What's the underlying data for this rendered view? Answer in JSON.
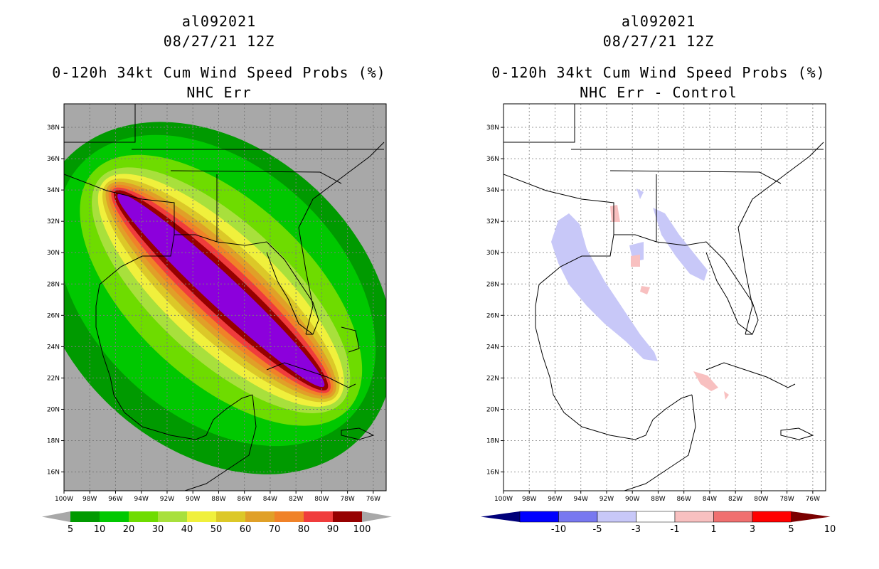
{
  "left_panel": {
    "storm_id": "al092021",
    "datetime": "08/27/21 12Z",
    "product": "0-120h 34kt Cum Wind Speed Probs (%)",
    "subtitle": "NHC Err",
    "colorbar": {
      "labels": [
        "5",
        "10",
        "20",
        "30",
        "40",
        "50",
        "60",
        "70",
        "80",
        "90",
        "100"
      ],
      "colors": [
        "#009a00",
        "#00c800",
        "#6edc00",
        "#a8e03c",
        "#f0f03c",
        "#dcc828",
        "#e0a028",
        "#f08228",
        "#f03c3c",
        "#960000",
        "#8c00dc"
      ]
    }
  },
  "right_panel": {
    "storm_id": "al092021",
    "datetime": "08/27/21 12Z",
    "product": "0-120h 34kt Cum Wind Speed Probs (%)",
    "subtitle": "NHC Err - Control",
    "colorbar": {
      "labels": [
        "-10",
        "-5",
        "-3",
        "-1",
        "1",
        "3",
        "5",
        "10"
      ],
      "colors": [
        "#00007a",
        "#0000ff",
        "#7878f0",
        "#c8c8f8",
        "#ffffff",
        "#f8c0c0",
        "#f07070",
        "#ff0000",
        "#7a0000"
      ]
    }
  },
  "map": {
    "lat_labels": [
      "38N",
      "36N",
      "34N",
      "32N",
      "30N",
      "28N",
      "26N",
      "24N",
      "22N",
      "20N",
      "18N",
      "16N"
    ],
    "lon_labels": [
      "100W",
      "98W",
      "96W",
      "94W",
      "92W",
      "90W",
      "88W",
      "86W",
      "84W",
      "82W",
      "80W",
      "78W",
      "76W"
    ],
    "lat_range": [
      14.8,
      39.5
    ],
    "lon_range": [
      -100,
      -75
    ],
    "background_left": "#a8a8a8"
  }
}
